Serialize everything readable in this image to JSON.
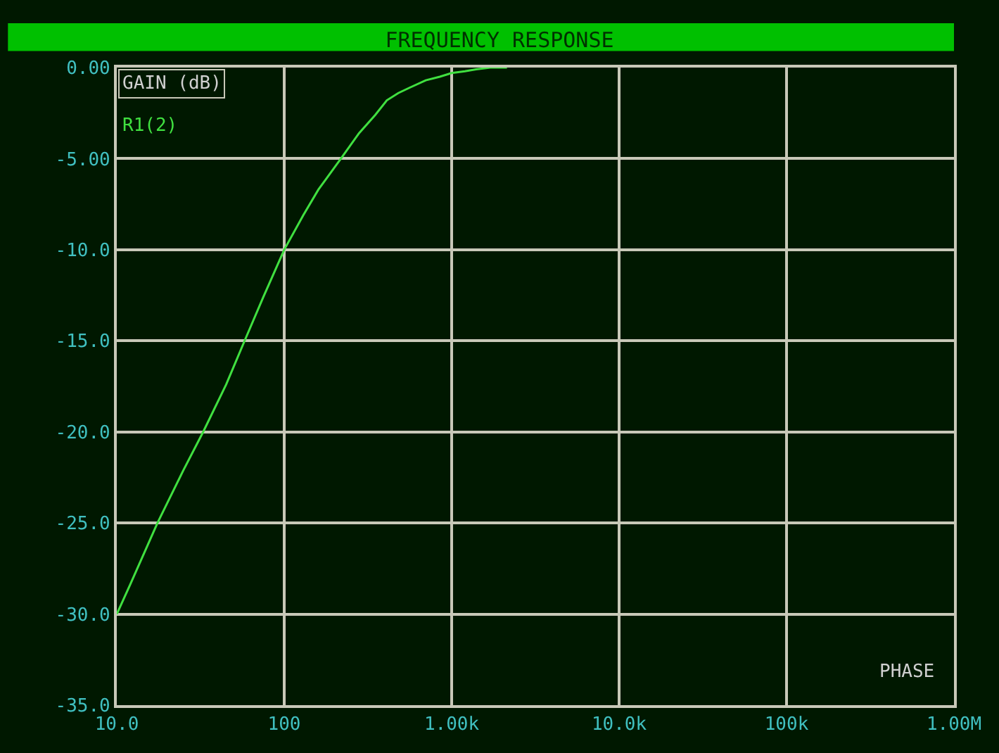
{
  "chart_data": {
    "type": "line",
    "title": "FREQUENCY RESPONSE",
    "ylabel": "GAIN (dB)",
    "x": [
      10,
      12,
      17.5,
      25,
      32.8,
      45,
      58,
      75,
      100,
      130,
      160,
      218,
      280,
      350,
      410,
      480,
      562,
      700,
      850,
      1000,
      1200,
      1400,
      1700,
      2140
    ],
    "series": [
      {
        "name": "R1(2)",
        "color": "#40e040",
        "values": [
          -30,
          -28.4,
          -25,
          -22.1,
          -20,
          -17.4,
          -15,
          -12.6,
          -10,
          -8.1,
          -6.7,
          -5,
          -3.6,
          -2.6,
          -1.8,
          -1.4,
          -1.1,
          -0.7,
          -0.5,
          -0.3,
          -0.2,
          -0.1,
          0,
          0
        ]
      }
    ],
    "log": "x",
    "xlim": [
      10,
      1000000
    ],
    "ylim": [
      -35,
      0
    ],
    "xticks": [
      {
        "value": 10,
        "label": "10.0"
      },
      100,
      {
        "value": 1000,
        "label": "1.00k"
      },
      {
        "value": 10000,
        "label": "10.0k"
      },
      {
        "value": 100000,
        "label": "100k"
      },
      {
        "value": 1000000,
        "label": "1.00M"
      }
    ],
    "yticks": [
      {
        "value": 0,
        "label": "0.00"
      },
      {
        "value": -5,
        "label": "-5.00"
      },
      {
        "value": -10,
        "label": "-10.0"
      },
      {
        "value": -15,
        "label": "-15.0"
      },
      {
        "value": -20,
        "label": "-20.0"
      },
      {
        "value": -25,
        "label": "-25.0"
      },
      {
        "value": -30,
        "label": "-30.0"
      },
      {
        "value": -35,
        "label": "-35.0"
      }
    ],
    "grid": true,
    "legend": false,
    "marker": "none",
    "line_style": "solid",
    "annotations": [
      "PHASE"
    ]
  }
}
